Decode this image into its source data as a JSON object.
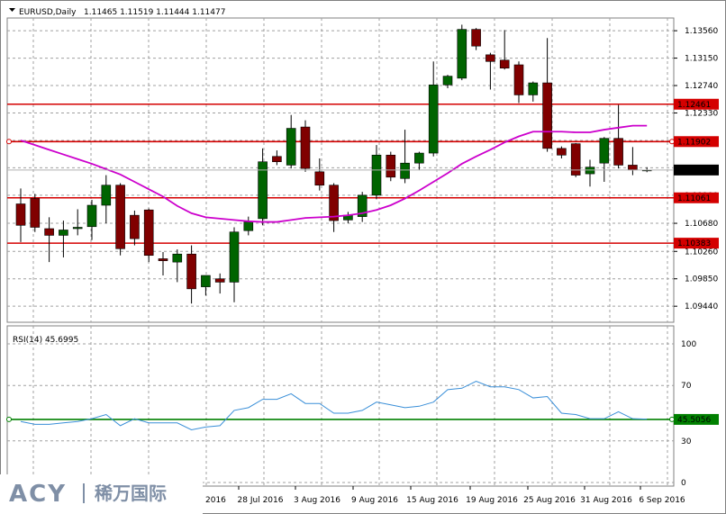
{
  "header": {
    "symbol_label": "EURUSD,Daily",
    "ohlc": "1.11465 1.11519 1.11444 1.11477"
  },
  "watermark": {
    "brand": "ACY",
    "chinese": "稀万国际"
  },
  "colors": {
    "bull": "#006400",
    "bear": "#800000",
    "ma": "#cc00cc",
    "level": "#d40000",
    "rsi": "#3a8fd8",
    "rsi_level": "#008000",
    "grid": "#a0a0a0"
  },
  "chart_data": [
    {
      "type": "candlestick",
      "title": "EURUSD,Daily",
      "ylim": [
        1.092,
        1.1375
      ],
      "y_ticks": [
        "1.13560",
        "1.13150",
        "1.12740",
        "1.12330",
        "1.11920",
        "1.11510",
        "1.11100",
        "1.10680",
        "1.10260",
        "1.09850",
        "1.09440"
      ],
      "x_ticks": [
        "28 Jul 2016",
        "3 Aug 2016",
        "9 Aug 2016",
        "15 Aug 2016",
        "19 Aug 2016",
        "25 Aug 2016",
        "31 Aug 2016",
        "6 Sep 2016"
      ],
      "x_ticks_partial": [
        "2016"
      ],
      "current_price": "1.11477",
      "levels": [
        {
          "value": 1.12461,
          "label": "1.12461"
        },
        {
          "value": 1.11902,
          "label": "1.11902"
        },
        {
          "value": 1.11061,
          "label": "1.11061"
        },
        {
          "value": 1.10383,
          "label": "1.10383"
        }
      ],
      "candles": [
        {
          "o": 1.1097,
          "h": 1.112,
          "l": 1.104,
          "c": 1.1065
        },
        {
          "o": 1.1105,
          "h": 1.1112,
          "l": 1.1055,
          "c": 1.1062
        },
        {
          "o": 1.106,
          "h": 1.1077,
          "l": 1.101,
          "c": 1.105
        },
        {
          "o": 1.105,
          "h": 1.1072,
          "l": 1.1017,
          "c": 1.1058
        },
        {
          "o": 1.106,
          "h": 1.1089,
          "l": 1.105,
          "c": 1.1062
        },
        {
          "o": 1.1063,
          "h": 1.1103,
          "l": 1.1043,
          "c": 1.1095
        },
        {
          "o": 1.1095,
          "h": 1.114,
          "l": 1.1068,
          "c": 1.1125
        },
        {
          "o": 1.1125,
          "h": 1.1128,
          "l": 1.102,
          "c": 1.103
        },
        {
          "o": 1.108,
          "h": 1.1087,
          "l": 1.1035,
          "c": 1.1045
        },
        {
          "o": 1.1088,
          "h": 1.109,
          "l": 1.101,
          "c": 1.102
        },
        {
          "o": 1.1015,
          "h": 1.1025,
          "l": 1.099,
          "c": 1.1012
        },
        {
          "o": 1.101,
          "h": 1.1029,
          "l": 1.098,
          "c": 1.1022
        },
        {
          "o": 1.1022,
          "h": 1.1035,
          "l": 1.0948,
          "c": 1.097
        },
        {
          "o": 1.0973,
          "h": 1.099,
          "l": 1.096,
          "c": 1.099
        },
        {
          "o": 1.0985,
          "h": 1.0993,
          "l": 1.0963,
          "c": 1.098
        },
        {
          "o": 1.098,
          "h": 1.1062,
          "l": 1.095,
          "c": 1.1055
        },
        {
          "o": 1.1057,
          "h": 1.1078,
          "l": 1.105,
          "c": 1.107
        },
        {
          "o": 1.1075,
          "h": 1.118,
          "l": 1.1065,
          "c": 1.116
        },
        {
          "o": 1.1168,
          "h": 1.1177,
          "l": 1.1155,
          "c": 1.116
        },
        {
          "o": 1.1155,
          "h": 1.123,
          "l": 1.115,
          "c": 1.121
        },
        {
          "o": 1.1212,
          "h": 1.1222,
          "l": 1.1145,
          "c": 1.115
        },
        {
          "o": 1.1145,
          "h": 1.1165,
          "l": 1.1117,
          "c": 1.1125
        },
        {
          "o": 1.1125,
          "h": 1.1128,
          "l": 1.1055,
          "c": 1.1072
        },
        {
          "o": 1.1073,
          "h": 1.1085,
          "l": 1.1068,
          "c": 1.108
        },
        {
          "o": 1.1078,
          "h": 1.1115,
          "l": 1.107,
          "c": 1.111
        },
        {
          "o": 1.111,
          "h": 1.1185,
          "l": 1.1104,
          "c": 1.117
        },
        {
          "o": 1.117,
          "h": 1.1175,
          "l": 1.1131,
          "c": 1.1137
        },
        {
          "o": 1.1135,
          "h": 1.1208,
          "l": 1.1128,
          "c": 1.1158
        },
        {
          "o": 1.1158,
          "h": 1.1175,
          "l": 1.1148,
          "c": 1.1173
        },
        {
          "o": 1.1173,
          "h": 1.131,
          "l": 1.1168,
          "c": 1.1275
        },
        {
          "o": 1.1275,
          "h": 1.129,
          "l": 1.127,
          "c": 1.1288
        },
        {
          "o": 1.1285,
          "h": 1.1365,
          "l": 1.1282,
          "c": 1.1358
        },
        {
          "o": 1.1358,
          "h": 1.136,
          "l": 1.1327,
          "c": 1.1333
        },
        {
          "o": 1.132,
          "h": 1.1323,
          "l": 1.1268,
          "c": 1.131
        },
        {
          "o": 1.1312,
          "h": 1.1357,
          "l": 1.1298,
          "c": 1.13
        },
        {
          "o": 1.1305,
          "h": 1.131,
          "l": 1.1248,
          "c": 1.126
        },
        {
          "o": 1.126,
          "h": 1.128,
          "l": 1.125,
          "c": 1.1278
        },
        {
          "o": 1.1278,
          "h": 1.1345,
          "l": 1.1175,
          "c": 1.118
        },
        {
          "o": 1.118,
          "h": 1.1183,
          "l": 1.1165,
          "c": 1.117
        },
        {
          "o": 1.1187,
          "h": 1.1188,
          "l": 1.1137,
          "c": 1.114
        },
        {
          "o": 1.1142,
          "h": 1.1163,
          "l": 1.1123,
          "c": 1.1152
        },
        {
          "o": 1.1158,
          "h": 1.1197,
          "l": 1.113,
          "c": 1.1195
        },
        {
          "o": 1.1195,
          "h": 1.1245,
          "l": 1.115,
          "c": 1.1155
        },
        {
          "o": 1.1155,
          "h": 1.1182,
          "l": 1.114,
          "c": 1.1148
        },
        {
          "o": 1.11465,
          "h": 1.11519,
          "l": 1.11444,
          "c": 1.11477
        }
      ],
      "ma": [
        1.1192,
        1.1185,
        1.1178,
        1.1171,
        1.1164,
        1.1157,
        1.1149,
        1.1141,
        1.113,
        1.1119,
        1.1108,
        1.1094,
        1.1083,
        1.1077,
        1.1075,
        1.1073,
        1.1071,
        1.107,
        1.107,
        1.1073,
        1.1076,
        1.1077,
        1.1078,
        1.108,
        1.1083,
        1.1088,
        1.1095,
        1.1105,
        1.1117,
        1.113,
        1.1143,
        1.1157,
        1.1168,
        1.1178,
        1.1189,
        1.1198,
        1.1205,
        1.1205,
        1.1205,
        1.1204,
        1.1204,
        1.1208,
        1.1211,
        1.1214,
        1.1214
      ]
    },
    {
      "type": "line",
      "title": "RSI(14) 45.6995",
      "ylim": [
        0,
        100
      ],
      "y_ticks": [
        "100",
        "70",
        "45.5056",
        "30",
        "0"
      ],
      "level": {
        "value": 45.5056,
        "label": "45.5056"
      },
      "values": [
        44,
        42,
        42,
        43,
        44,
        46,
        49,
        41,
        46,
        43,
        43,
        43,
        38,
        40,
        41,
        52,
        54,
        60,
        60,
        64,
        57,
        57,
        50,
        50,
        52,
        58,
        56,
        54,
        55,
        58,
        67,
        68,
        73,
        69,
        69,
        67,
        61,
        62,
        50,
        49,
        46,
        46,
        51,
        46,
        45.7
      ]
    }
  ]
}
